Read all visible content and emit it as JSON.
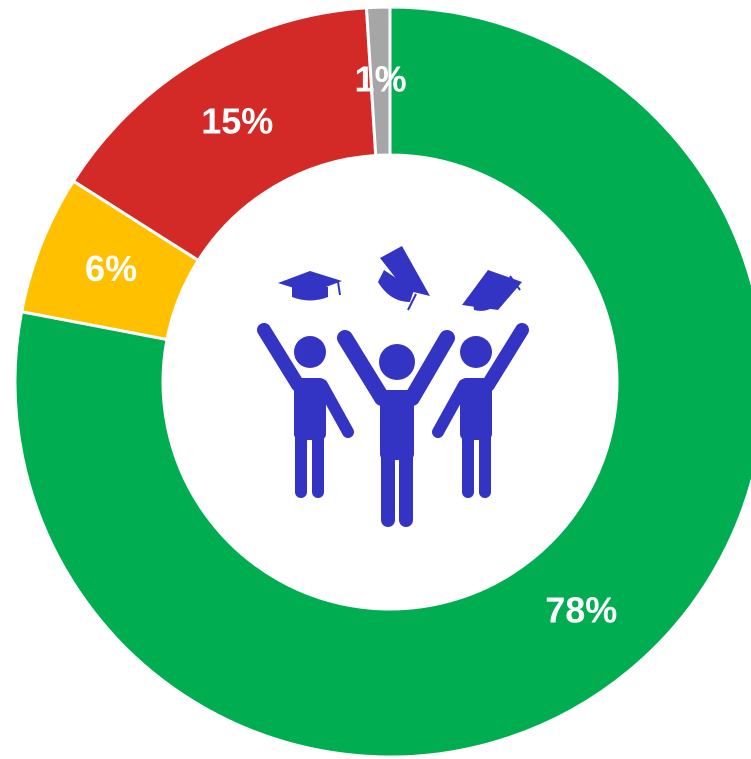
{
  "chart_data": {
    "type": "donut",
    "categories": [
      null,
      null,
      null,
      null
    ],
    "values": [
      78,
      6,
      15,
      1
    ],
    "value_labels": [
      "78%",
      "6%",
      "15%",
      "1%"
    ],
    "colors": [
      "#00ad50",
      "#ffc000",
      "#d42a27",
      "#a6a6a6"
    ]
  }
}
